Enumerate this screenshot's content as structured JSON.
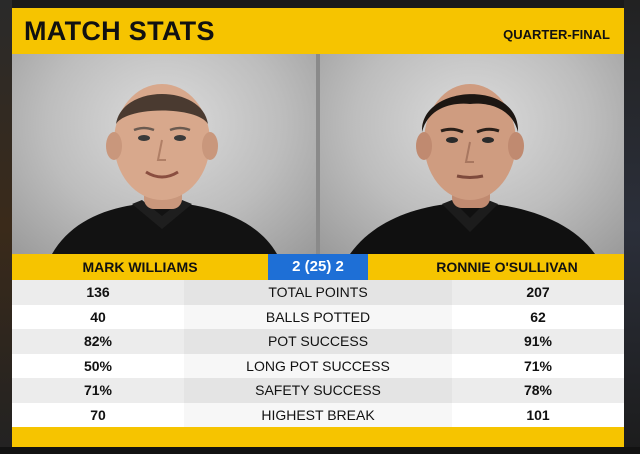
{
  "header": {
    "title": "MATCH STATS",
    "round": "QUARTER-FINAL"
  },
  "players": {
    "left": {
      "name": "MARK WILLIAMS"
    },
    "right": {
      "name": "RONNIE O'SULLIVAN"
    }
  },
  "score": "2 (25) 2",
  "colors": {
    "accent": "#f6c400",
    "score_bg": "#1e6fd6"
  },
  "stats": [
    {
      "left": "136",
      "label": "TOTAL POINTS",
      "right": "207"
    },
    {
      "left": "40",
      "label": "BALLS POTTED",
      "right": "62"
    },
    {
      "left": "82%",
      "label": "POT SUCCESS",
      "right": "91%"
    },
    {
      "left": "50%",
      "label": "LONG POT SUCCESS",
      "right": "71%"
    },
    {
      "left": "71%",
      "label": "SAFETY SUCCESS",
      "right": "78%"
    },
    {
      "left": "70",
      "label": "HIGHEST BREAK",
      "right": "101"
    }
  ]
}
